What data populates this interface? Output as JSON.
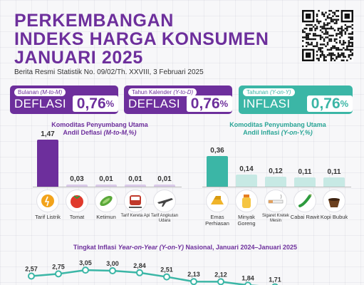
{
  "header": {
    "title_line1": "PERKEMBANGAN",
    "title_line2": "INDEKS HARGA KONSUMEN",
    "title_line3": "JANUARI 2025",
    "subtitle": "Berita Resmi Statistik No. 09/02/Th. XXVIII, 3 Februari 2025"
  },
  "cards": [
    {
      "label": "Bulanan",
      "sub": "(M-to-M)",
      "kind": "DEFLASI",
      "value": "0,76",
      "pct": "%",
      "color": "#6d2f9c"
    },
    {
      "label": "Tahun Kalender",
      "sub": "(Y-to-D)",
      "kind": "DEFLASI",
      "value": "0,76",
      "pct": "%",
      "color": "#6d2f9c"
    },
    {
      "label": "Tahunan",
      "sub": "(Y-on-Y)",
      "kind": "INFLASI",
      "value": "0,76",
      "pct": "%",
      "color": "#3bb6a6"
    }
  ],
  "deflation_section": {
    "title_line1": "Komoditas Penyumbang Utama",
    "title_line2_prefix": "Andil Deflasi ",
    "title_line2_italic": "(M-to-M,%)",
    "color": "#6d2f9c",
    "bar_color": "#6d2f9c",
    "bar_light_color": "#d9c9e8",
    "items": [
      {
        "value": "1,47",
        "num": 1.47,
        "label": "Tarif Listrik",
        "icon": "lightbulb-icon"
      },
      {
        "value": "0,03",
        "num": 0.03,
        "label": "Tomat",
        "icon": "tomato-icon"
      },
      {
        "value": "0,01",
        "num": 0.01,
        "label": "Ketimun",
        "icon": "cucumber-icon"
      },
      {
        "value": "0,01",
        "num": 0.01,
        "label": "Tarif Kereta Api",
        "icon": "train-icon"
      },
      {
        "value": "0,01",
        "num": 0.01,
        "label": "Tarif Angkutan Udara",
        "icon": "airplane-icon"
      }
    ]
  },
  "inflation_section": {
    "title_line1": "Komoditas Penyumbang Utama",
    "title_line2_prefix": "Andil Inflasi ",
    "title_line2_italic": "(Y-on-Y,%)",
    "color": "#2aa596",
    "bar_color": "#3bb6a6",
    "bar_light_color": "#c7e9e4",
    "items": [
      {
        "value": "0,36",
        "num": 0.36,
        "label": "Emas Perhiasan",
        "icon": "gold-icon"
      },
      {
        "value": "0,14",
        "num": 0.14,
        "label": "Minyak Goreng",
        "icon": "cooking-oil-icon"
      },
      {
        "value": "0,12",
        "num": 0.12,
        "label": "Sigaret Kretek Mesin",
        "icon": "cigarette-icon"
      },
      {
        "value": "0,11",
        "num": 0.11,
        "label": "Cabai Rawit",
        "icon": "chili-icon"
      },
      {
        "value": "0,11",
        "num": 0.11,
        "label": "Kopi Bubuk",
        "icon": "coffee-icon"
      }
    ]
  },
  "line_chart": {
    "title_prefix": "Tingkat Inflasi ",
    "title_italic": "Year-on-Year (Y-on-Y)",
    "title_suffix": " Nasional, Januari 2024–Januari 2025",
    "color": "#3bb6a6",
    "ylim": [
      1.0,
      3.4
    ],
    "points": [
      {
        "value": 2.57,
        "label": "2,57"
      },
      {
        "value": 2.75,
        "label": "2,75"
      },
      {
        "value": 3.05,
        "label": "3,05"
      },
      {
        "value": 3.0,
        "label": "3,00"
      },
      {
        "value": 2.84,
        "label": "2,84"
      },
      {
        "value": 2.51,
        "label": "2,51"
      },
      {
        "value": 2.13,
        "label": "2,13"
      },
      {
        "value": 2.12,
        "label": "2,12"
      },
      {
        "value": 1.84,
        "label": "1,84"
      },
      {
        "value": 1.71,
        "label": "1,71"
      }
    ]
  }
}
